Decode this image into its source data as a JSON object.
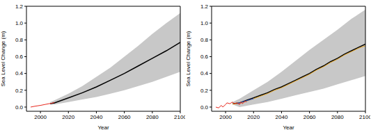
{
  "chart_data": [
    {
      "type": "line",
      "x_label": "Year",
      "y_label": "Sea Level Change (m)",
      "grid": false,
      "xlim": [
        1990,
        2100
      ],
      "xticks": [
        2000,
        2020,
        2040,
        2060,
        2080,
        2100
      ],
      "ylim": [
        -0.05,
        1.2
      ],
      "yticks": [
        {
          "value": 0,
          "label": "0.0"
        },
        {
          "value": 0.2,
          "label": "0.2"
        },
        {
          "value": 0.4,
          "label": "0.4"
        },
        {
          "value": 0.6,
          "label": "0.6"
        },
        {
          "value": 0.8,
          "label": "0.8"
        },
        {
          "value": 1.0,
          "label": "1.0"
        },
        {
          "value": 1.2,
          "label": "1.2"
        }
      ],
      "series": [
        {
          "type": "band",
          "color": "#c8c8c8",
          "x": [
            2007,
            2010,
            2020,
            2030,
            2040,
            2050,
            2060,
            2070,
            2080,
            2090,
            2100
          ],
          "lower": [
            0.03,
            0.03,
            0.06,
            0.09,
            0.12,
            0.16,
            0.2,
            0.25,
            0.3,
            0.36,
            0.42
          ],
          "upper": [
            0.06,
            0.08,
            0.16,
            0.25,
            0.36,
            0.47,
            0.6,
            0.73,
            0.87,
            1.0,
            1.12
          ]
        },
        {
          "type": "line",
          "color": "#000000",
          "x": [
            2007,
            2010,
            2020,
            2030,
            2040,
            2050,
            2060,
            2070,
            2080,
            2090,
            2100
          ],
          "values": [
            0.04,
            0.05,
            0.11,
            0.17,
            0.24,
            0.32,
            0.4,
            0.49,
            0.58,
            0.67,
            0.77
          ]
        },
        {
          "type": "line",
          "color": "#e8261c",
          "x": [
            1993,
            1996,
            1998,
            2000,
            2003,
            2006,
            2008,
            2010
          ],
          "values": [
            0.0,
            0.01,
            0.015,
            0.02,
            0.03,
            0.04,
            0.045,
            0.055
          ]
        }
      ]
    },
    {
      "type": "line",
      "x_label": "Year",
      "y_label": "Sea Level Change (m)",
      "grid": false,
      "xlim": [
        1990,
        2100
      ],
      "xticks": [
        2000,
        2020,
        2040,
        2060,
        2080,
        2100
      ],
      "ylim": [
        -0.05,
        1.2
      ],
      "yticks": [
        {
          "value": 0,
          "label": "0.0"
        },
        {
          "value": 0.2,
          "label": "0.2"
        },
        {
          "value": 0.4,
          "label": "0.4"
        },
        {
          "value": 0.6,
          "label": "0.6"
        },
        {
          "value": 0.8,
          "label": "0.8"
        },
        {
          "value": 1.0,
          "label": "1.0"
        },
        {
          "value": 1.2,
          "label": "1.2"
        }
      ],
      "series": [
        {
          "type": "band",
          "color": "#c8c8c8",
          "x": [
            2005,
            2010,
            2020,
            2030,
            2040,
            2050,
            2060,
            2070,
            2080,
            2090,
            2100
          ],
          "lower": [
            0.03,
            0.0,
            0.03,
            0.06,
            0.1,
            0.14,
            0.18,
            0.22,
            0.27,
            0.32,
            0.37
          ],
          "upper": [
            0.06,
            0.1,
            0.2,
            0.3,
            0.42,
            0.55,
            0.68,
            0.8,
            0.92,
            1.05,
            1.16
          ]
        },
        {
          "type": "line",
          "color": "#000000",
          "x": [
            2005,
            2010,
            2015,
            2020,
            2025,
            2030,
            2035,
            2040,
            2045,
            2050,
            2055,
            2060,
            2065,
            2070,
            2075,
            2080,
            2085,
            2090,
            2095,
            2100
          ],
          "values": [
            0.04,
            0.05,
            0.08,
            0.11,
            0.14,
            0.17,
            0.21,
            0.24,
            0.28,
            0.32,
            0.36,
            0.4,
            0.45,
            0.49,
            0.54,
            0.58,
            0.63,
            0.67,
            0.71,
            0.75
          ]
        },
        {
          "type": "line",
          "color": "#e0a020",
          "x": [
            2005,
            2010,
            2015,
            2020,
            2025,
            2030,
            2035,
            2040,
            2045,
            2050,
            2055,
            2060,
            2065,
            2070,
            2075,
            2080,
            2085,
            2090,
            2095,
            2100
          ],
          "values": [
            0.035,
            0.045,
            0.07,
            0.1,
            0.13,
            0.16,
            0.2,
            0.23,
            0.27,
            0.31,
            0.35,
            0.39,
            0.44,
            0.48,
            0.53,
            0.57,
            0.62,
            0.66,
            0.7,
            0.73
          ]
        },
        {
          "type": "line",
          "color": "#1f4fd6",
          "x": [
            2008,
            2010,
            2012,
            2014,
            2016,
            2018,
            2020
          ],
          "values": [
            0.04,
            0.05,
            0.06,
            0.07,
            0.08,
            0.09,
            0.1
          ]
        },
        {
          "type": "line",
          "color": "#e8261c",
          "x": [
            1993,
            1995,
            1997,
            1998,
            2000,
            2001,
            2003,
            2005,
            2006,
            2008,
            2010,
            2011,
            2012,
            2014,
            2015
          ],
          "values": [
            0.0,
            -0.01,
            0.02,
            0.0,
            0.03,
            0.05,
            0.04,
            0.06,
            0.04,
            0.05,
            0.03,
            0.06,
            0.04,
            0.07,
            0.06
          ]
        }
      ]
    }
  ]
}
